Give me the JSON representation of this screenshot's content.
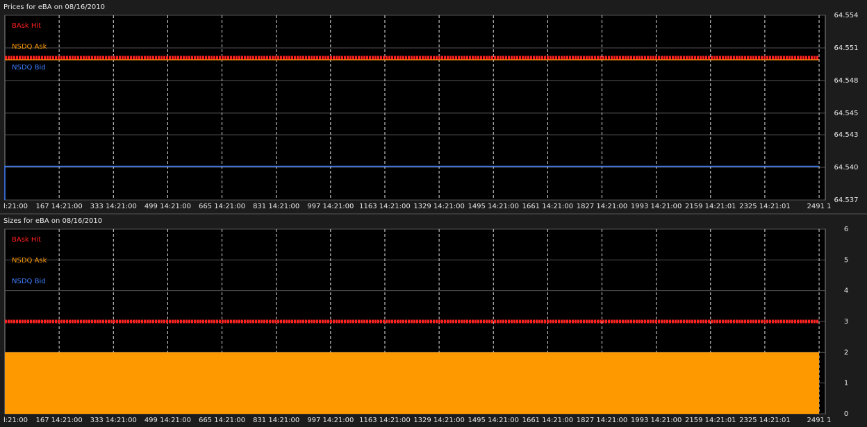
{
  "chart_data": [
    {
      "type": "line",
      "title": "Prices for  eBA  on  08/16/2010",
      "xlim": [
        1,
        2510
      ],
      "ylim": [
        64.537,
        64.554
      ],
      "xticks": [
        {
          "value": 1,
          "label": "l:21:00"
        },
        {
          "value": 167,
          "label": "167 14:21:00"
        },
        {
          "value": 333,
          "label": "333 14:21:00"
        },
        {
          "value": 499,
          "label": "499 14:21:00"
        },
        {
          "value": 665,
          "label": "665 14:21:00"
        },
        {
          "value": 831,
          "label": "831 14:21:00"
        },
        {
          "value": 997,
          "label": "997 14:21:00"
        },
        {
          "value": 1163,
          "label": "1163 14:21:00"
        },
        {
          "value": 1329,
          "label": "1329 14:21:00"
        },
        {
          "value": 1495,
          "label": "1495 14:21:00"
        },
        {
          "value": 1661,
          "label": "1661 14:21:00"
        },
        {
          "value": 1827,
          "label": "1827 14:21:00"
        },
        {
          "value": 1993,
          "label": "1993 14:21:00"
        },
        {
          "value": 2159,
          "label": "2159 14:21:01"
        },
        {
          "value": 2325,
          "label": "2325 14:21:01"
        },
        {
          "value": 2491,
          "label": "2491 1"
        }
      ],
      "yticks": [
        64.537,
        {
          "value": 64.54,
          "label": "64.540"
        },
        64.543,
        64.545,
        64.548,
        64.551,
        64.554
      ],
      "grid": true,
      "series": [
        {
          "name": "BAsk Hit",
          "color": "#ff2020",
          "x": [
            1,
            2491
          ],
          "values": [
            64.5501,
            64.5501
          ]
        },
        {
          "name": "NSDQ Ask",
          "color": "#ff9900",
          "x": [
            1,
            2491
          ],
          "values": [
            64.5499,
            64.5499
          ]
        },
        {
          "name": "NSDQ Bid",
          "color": "#3d7fff",
          "x": [
            1,
            1,
            2491
          ],
          "values": [
            64.537,
            64.5401,
            64.5401
          ]
        }
      ]
    },
    {
      "type": "line",
      "title": "Sizes for  eBA  on  08/16/2010",
      "xlim": [
        1,
        2510
      ],
      "ylim": [
        0,
        6
      ],
      "xticks": [
        {
          "value": 1,
          "label": "l:21:00"
        },
        {
          "value": 167,
          "label": "167 14:21:00"
        },
        {
          "value": 333,
          "label": "333 14:21:00"
        },
        {
          "value": 499,
          "label": "499 14:21:00"
        },
        {
          "value": 665,
          "label": "665 14:21:00"
        },
        {
          "value": 831,
          "label": "831 14:21:00"
        },
        {
          "value": 997,
          "label": "997 14:21:00"
        },
        {
          "value": 1163,
          "label": "1163 14:21:00"
        },
        {
          "value": 1329,
          "label": "1329 14:21:00"
        },
        {
          "value": 1495,
          "label": "1495 14:21:00"
        },
        {
          "value": 1661,
          "label": "1661 14:21:00"
        },
        {
          "value": 1827,
          "label": "1827 14:21:00"
        },
        {
          "value": 1993,
          "label": "1993 14:21:00"
        },
        {
          "value": 2159,
          "label": "2159 14:21:01"
        },
        {
          "value": 2325,
          "label": "2325 14:21:01"
        },
        {
          "value": 2491,
          "label": "2491 1"
        }
      ],
      "yticks": [
        0,
        1,
        2,
        3,
        4,
        5,
        6
      ],
      "grid": true,
      "series": [
        {
          "name": "BAsk Hit",
          "color": "#ff2020",
          "x": [
            1,
            2491
          ],
          "values": [
            3,
            3
          ]
        },
        {
          "name": "NSDQ Ask",
          "color": "#ff9900",
          "x": [
            1,
            2491
          ],
          "values": [
            2,
            2
          ],
          "fill": true
        },
        {
          "name": "NSDQ Bid",
          "color": "#3d7fff",
          "x": [],
          "values": []
        }
      ]
    }
  ]
}
